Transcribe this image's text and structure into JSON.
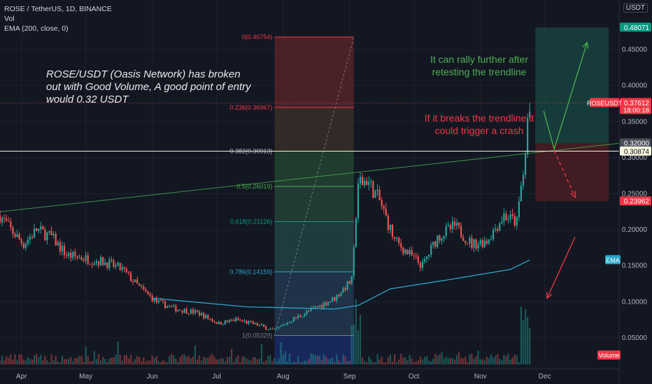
{
  "legend": {
    "symbol": "ROSE / TetherUS, 1D, BINANCE",
    "vol": "Vol",
    "ema": "EMA (200, close, 0)"
  },
  "currency": "USDT",
  "annotations": {
    "main": "ROSE/USDT (Oasis Network) has broken out with Good Volume, A good point of entry would 0.32 USDT",
    "green": "It can rally further after retesting the trendline",
    "red": "If it breaks the trendline it could trigger a crash"
  },
  "colors": {
    "background": "#131722",
    "up": "#26a69a",
    "down": "#ef5350",
    "ema": "#2aa6c9",
    "trendline": "#4caf50",
    "target_zone": "#1c5a4f",
    "stop_zone": "#5a1f24"
  },
  "chart_data": {
    "type": "candlestick",
    "x_ticks": [
      "Apr",
      "May",
      "Jun",
      "Jul",
      "Aug",
      "Sep",
      "Oct",
      "Nov",
      "Dec"
    ],
    "y_ticks": [
      "0.45000",
      "0.40000",
      "0.35000",
      "0.30000",
      "0.25000",
      "0.20000",
      "0.15000",
      "0.10000",
      "0.05000"
    ],
    "y_range": [
      0.015,
      0.515
    ],
    "price_path": [
      {
        "date": "Mar 22",
        "price": 0.22
      },
      {
        "date": "Mar 27",
        "price": 0.2
      },
      {
        "date": "Apr 2",
        "price": 0.18
      },
      {
        "date": "Apr 8",
        "price": 0.2
      },
      {
        "date": "Apr 15",
        "price": 0.19
      },
      {
        "date": "Apr 22",
        "price": 0.165
      },
      {
        "date": "May 1",
        "price": 0.16
      },
      {
        "date": "May 10",
        "price": 0.155
      },
      {
        "date": "May 18",
        "price": 0.145
      },
      {
        "date": "May 26",
        "price": 0.12
      },
      {
        "date": "Jun 3",
        "price": 0.1
      },
      {
        "date": "Jun 12",
        "price": 0.09
      },
      {
        "date": "Jun 22",
        "price": 0.085
      },
      {
        "date": "Jul 2",
        "price": 0.07
      },
      {
        "date": "Jul 10",
        "price": 0.075
      },
      {
        "date": "Jul 20",
        "price": 0.068
      },
      {
        "date": "Jul 28",
        "price": 0.06
      },
      {
        "date": "Aug 5",
        "price": 0.075
      },
      {
        "date": "Aug 15",
        "price": 0.09
      },
      {
        "date": "Aug 25",
        "price": 0.105
      },
      {
        "date": "Sep 2",
        "price": 0.13
      },
      {
        "date": "Sep 5",
        "price": 0.26
      },
      {
        "date": "Sep 9",
        "price": 0.27
      },
      {
        "date": "Sep 15",
        "price": 0.24
      },
      {
        "date": "Sep 22",
        "price": 0.185
      },
      {
        "date": "Oct 1",
        "price": 0.16
      },
      {
        "date": "Oct 5",
        "price": 0.15
      },
      {
        "date": "Oct 12",
        "price": 0.19
      },
      {
        "date": "Oct 20",
        "price": 0.205
      },
      {
        "date": "Oct 28",
        "price": 0.18
      },
      {
        "date": "Nov 4",
        "price": 0.185
      },
      {
        "date": "Nov 12",
        "price": 0.22
      },
      {
        "date": "Nov 18",
        "price": 0.21
      },
      {
        "date": "Nov 22",
        "price": 0.31
      },
      {
        "date": "Nov 24",
        "price": 0.37612
      }
    ],
    "ema200": [
      {
        "date": "Jun 1",
        "value": 0.105
      },
      {
        "date": "Jul 15",
        "value": 0.093
      },
      {
        "date": "Aug 25",
        "value": 0.09
      },
      {
        "date": "Sep 5",
        "value": 0.095
      },
      {
        "date": "Sep 20",
        "value": 0.118
      },
      {
        "date": "Oct 20",
        "value": 0.132
      },
      {
        "date": "Nov 15",
        "value": 0.145
      },
      {
        "date": "Nov 24",
        "value": 0.158
      }
    ],
    "fibonacci": {
      "levels": [
        {
          "ratio": 0,
          "price": 0.46754,
          "label": "0(0.46754)"
        },
        {
          "ratio": 0.236,
          "price": 0.36967,
          "label": "0.236(0.36967)"
        },
        {
          "ratio": 0.382,
          "price": 0.30913,
          "label": "0.382(0.30913)"
        },
        {
          "ratio": 0.5,
          "price": 0.26019,
          "label": "0.5(0.26019)"
        },
        {
          "ratio": 0.618,
          "price": 0.21126,
          "label": "0.618(0.21126)"
        },
        {
          "ratio": 0.786,
          "price": 0.14159,
          "label": "0.786(0.14159)"
        },
        {
          "ratio": 1,
          "price": 0.05329,
          "label": "1(0.05329)"
        }
      ],
      "x_start": "Jul 28",
      "x_end": "Sep 3"
    },
    "trendline": [
      {
        "date": "Mar 22",
        "price": 0.225
      },
      {
        "date": "Dec 20",
        "price": 0.32
      }
    ],
    "horizontal_line": 0.3091,
    "price_labels": [
      {
        "label": "0.48071",
        "value": 0.48071
      },
      {
        "label": "0.37612",
        "value": 0.37612
      },
      {
        "label": "0.32000",
        "value": 0.32
      },
      {
        "label": "0.30874",
        "value": 0.30874
      },
      {
        "label": "0.23962",
        "value": 0.23962
      }
    ],
    "symbol_tag": "ROSEUSDT",
    "countdown": "18:00:18",
    "pane_labels": [
      "EMA",
      "Volume"
    ],
    "position": {
      "x_start": "Nov 24",
      "x_end": "Dec 20",
      "target": 0.48071,
      "entry": 0.32,
      "stop": 0.23962
    }
  }
}
